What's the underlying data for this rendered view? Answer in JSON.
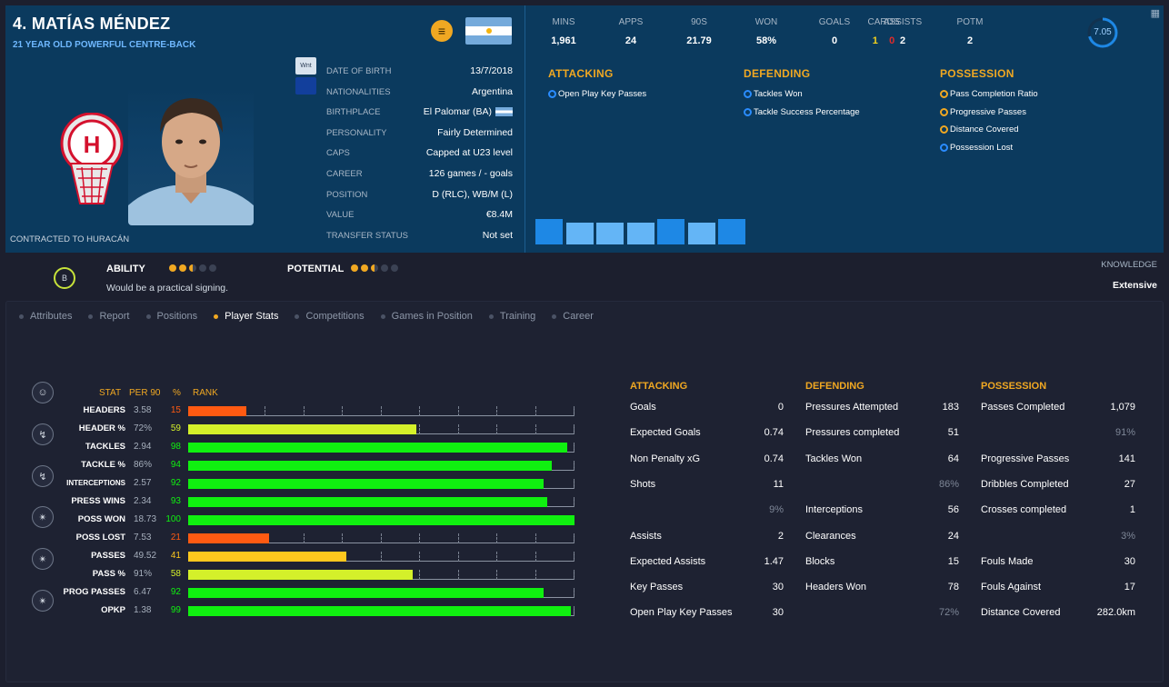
{
  "player": {
    "name": "4. MATÍAS MÉNDEZ",
    "subtitle": "21 YEAR OLD POWERFUL CENTRE-BACK",
    "contract": "CONTRACTED TO HURACÁN",
    "work_permit_label": "Wnt"
  },
  "info": [
    {
      "label": "DATE OF BIRTH",
      "value": "13/7/2018"
    },
    {
      "label": "NATIONALITIES",
      "value": "Argentina"
    },
    {
      "label": "BIRTHPLACE",
      "value": "El Palomar (BA)"
    },
    {
      "label": "PERSONALITY",
      "value": "Fairly Determined"
    },
    {
      "label": "CAPS",
      "value": "Capped at U23 level"
    },
    {
      "label": "CAREER",
      "value": "126  games /      -  goals"
    },
    {
      "label": "POSITION",
      "value": "D (RLC), WB/M (L)"
    },
    {
      "label": "VALUE",
      "value": "€8.4M"
    },
    {
      "label": "TRANSFER STATUS",
      "value": "Not set"
    }
  ],
  "summary": [
    {
      "label": "MINS",
      "value": "1,961"
    },
    {
      "label": "APPS",
      "value": "24"
    },
    {
      "label": "90S",
      "value": "21.79"
    },
    {
      "label": "WON",
      "value": "58%"
    },
    {
      "label": "GOALS",
      "value": "0"
    },
    {
      "label": "ASSISTS",
      "value": "2"
    },
    {
      "label": "POTM",
      "value": "2"
    }
  ],
  "cards": {
    "label": "CARDS",
    "yellow": "1",
    "red": "0"
  },
  "rating": {
    "value": "7.05",
    "fraction": 0.705
  },
  "highlights": {
    "attacking": {
      "title": "ATTACKING",
      "items": [
        {
          "label": "Open Play Key Passes",
          "dot": "blue"
        }
      ]
    },
    "defending": {
      "title": "DEFENDING",
      "items": [
        {
          "label": "Tackles Won",
          "dot": "blue"
        },
        {
          "label": "Tackle Success Percentage",
          "dot": "blue"
        }
      ]
    },
    "possession": {
      "title": "POSSESSION",
      "items": [
        {
          "label": "Pass Completion Ratio",
          "dot": "gold"
        },
        {
          "label": "Progressive Passes",
          "dot": "gold"
        },
        {
          "label": "Distance Covered",
          "dot": "gold"
        },
        {
          "label": "Possession Lost",
          "dot": "blue"
        }
      ]
    }
  },
  "form_bars": [
    {
      "value": 0.93,
      "color": "#1e88e5"
    },
    {
      "value": 0.8,
      "color": "#64b5f6"
    },
    {
      "value": 0.8,
      "color": "#64b5f6"
    },
    {
      "value": 0.8,
      "color": "#64b5f6"
    },
    {
      "value": 0.93,
      "color": "#1e88e5"
    },
    {
      "value": 0.8,
      "color": "#64b5f6"
    },
    {
      "value": 0.93,
      "color": "#1e88e5"
    }
  ],
  "ability": {
    "label": "ABILITY",
    "stars": 2.5,
    "potential_label": "POTENTIAL",
    "potential_stars": 2.5,
    "verdict": "Would be a practical signing.",
    "dw_label": "B",
    "knowledge_label": "KNOWLEDGE",
    "knowledge_value": "Extensive"
  },
  "tabs": [
    {
      "label": "Attributes",
      "active": false
    },
    {
      "label": "Report",
      "active": false
    },
    {
      "label": "Positions",
      "active": false
    },
    {
      "label": "Player Stats",
      "active": true
    },
    {
      "label": "Competitions",
      "active": false
    },
    {
      "label": "Games in Position",
      "active": false
    },
    {
      "label": "Training",
      "active": false
    },
    {
      "label": "Career",
      "active": false
    }
  ],
  "rank_table": {
    "headers": {
      "stat": "STAT",
      "per90": "PER 90",
      "pct": "%",
      "rank": "RANK"
    },
    "rows": [
      {
        "stat": "HEADERS",
        "per90": "3.58",
        "pct": "15"
      },
      {
        "stat": "HEADER %",
        "per90": "72%",
        "pct": "59"
      },
      {
        "stat": "TACKLES",
        "per90": "2.94",
        "pct": "98"
      },
      {
        "stat": "TACKLE %",
        "per90": "86%",
        "pct": "94"
      },
      {
        "stat": "INTERCEPTIONS",
        "per90": "2.57",
        "pct": "92",
        "small": true
      },
      {
        "stat": "PRESS WINS",
        "per90": "2.34",
        "pct": "93"
      },
      {
        "stat": "POSS WON",
        "per90": "18.73",
        "pct": "100"
      },
      {
        "stat": "POSS LOST",
        "per90": "7.53",
        "pct": "21"
      },
      {
        "stat": "PASSES",
        "per90": "49.52",
        "pct": "41"
      },
      {
        "stat": "PASS %",
        "per90": "91%",
        "pct": "58"
      },
      {
        "stat": "PROG PASSES",
        "per90": "6.47",
        "pct": "92"
      },
      {
        "stat": "OPKP",
        "per90": "1.38",
        "pct": "99"
      }
    ]
  },
  "detail": {
    "attacking": {
      "title": "ATTACKING",
      "rows": [
        {
          "label": "Goals",
          "value": "0"
        },
        {
          "label": "Expected Goals",
          "value": "0.74"
        },
        {
          "label": "Non Penalty xG",
          "value": "0.74"
        },
        {
          "label": "Shots",
          "value": "11"
        },
        {
          "label": "",
          "value": "9%",
          "dim": true
        },
        {
          "label": "Assists",
          "value": "2"
        },
        {
          "label": "Expected Assists",
          "value": "1.47"
        },
        {
          "label": "Key Passes",
          "value": "30"
        },
        {
          "label": "Open Play Key Passes",
          "value": "30"
        }
      ]
    },
    "defending": {
      "title": "DEFENDING",
      "rows": [
        {
          "label": "Pressures Attempted",
          "value": "183"
        },
        {
          "label": "Pressures completed",
          "value": "51"
        },
        {
          "label": "Tackles Won",
          "value": "64"
        },
        {
          "label": "",
          "value": "86%",
          "dim": true
        },
        {
          "label": "Interceptions",
          "value": "56"
        },
        {
          "label": "Clearances",
          "value": "24"
        },
        {
          "label": "Blocks",
          "value": "15"
        },
        {
          "label": "Headers Won",
          "value": "78"
        },
        {
          "label": "",
          "value": "72%",
          "dim": true
        }
      ]
    },
    "possession": {
      "title": "POSSESSION",
      "rows": [
        {
          "label": "Passes Completed",
          "value": "1,079"
        },
        {
          "label": "",
          "value": "91%",
          "dim": true
        },
        {
          "label": "Progressive Passes",
          "value": "141"
        },
        {
          "label": "Dribbles Completed",
          "value": "27"
        },
        {
          "label": "Crosses completed",
          "value": "1"
        },
        {
          "label": "",
          "value": "3%",
          "dim": true
        },
        {
          "label": "Fouls Made",
          "value": "30"
        },
        {
          "label": "Fouls Against",
          "value": "17"
        },
        {
          "label": "Distance Covered",
          "value": "282.0km"
        }
      ]
    }
  },
  "side_icons": [
    "player-profile-icon",
    "heading-icon",
    "tackling-icon",
    "pressing-icon",
    "passing-icon",
    "progressive-pass-icon"
  ],
  "colors": {
    "accent": "#f0a822",
    "header_bg": "#0b3a5e",
    "bar_low": "#ff5a12",
    "bar_mid": "#ffc81e",
    "bar_high": "#10f010"
  }
}
